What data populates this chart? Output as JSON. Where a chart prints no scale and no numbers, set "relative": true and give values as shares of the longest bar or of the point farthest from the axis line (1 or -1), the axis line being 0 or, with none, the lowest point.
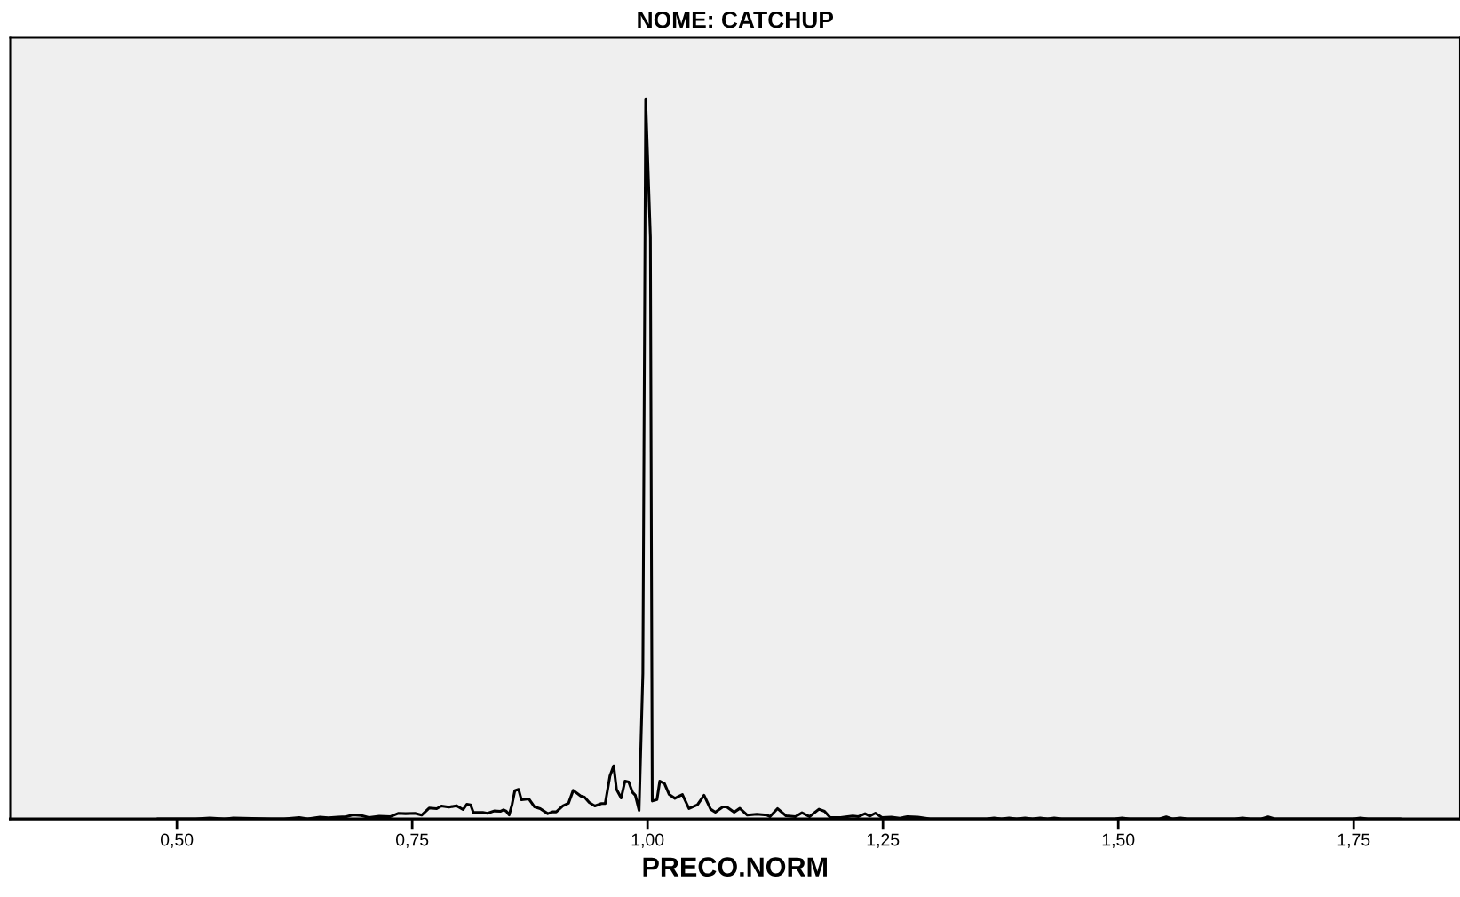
{
  "chart_data": {
    "type": "line",
    "title": "NOME: CATCHUP",
    "xlabel": "PRECO.NORM",
    "relative": true,
    "xlim": [
      0.323,
      1.863
    ],
    "xticks": [
      {
        "value": 0.5,
        "label": "0,50"
      },
      {
        "value": 0.75,
        "label": "0,75"
      },
      {
        "value": 1.0,
        "label": "1,00"
      },
      {
        "value": 1.25,
        "label": "1,25"
      },
      {
        "value": 1.5,
        "label": "1,50"
      },
      {
        "value": 1.75,
        "label": "1,75"
      }
    ],
    "grid": false,
    "marker": "none",
    "line_style": "solid",
    "series": [
      {
        "color": "#000000",
        "x": [
          0.48,
          0.52,
          0.535,
          0.55,
          0.56,
          0.6,
          0.614,
          0.63,
          0.639,
          0.652,
          0.661,
          0.671,
          0.68,
          0.687,
          0.696,
          0.704,
          0.715,
          0.727,
          0.735,
          0.743,
          0.753,
          0.76,
          0.768,
          0.776,
          0.781,
          0.789,
          0.797,
          0.804,
          0.808,
          0.812,
          0.815,
          0.825,
          0.83,
          0.837,
          0.844,
          0.847,
          0.85,
          0.853,
          0.856,
          0.859,
          0.863,
          0.866,
          0.874,
          0.88,
          0.886,
          0.894,
          0.899,
          0.903,
          0.91,
          0.916,
          0.921,
          0.929,
          0.933,
          0.938,
          0.944,
          0.951,
          0.955,
          0.96,
          0.964,
          0.967,
          0.972,
          0.976,
          0.98,
          0.984,
          0.987,
          0.991,
          0.995,
          0.998,
          1.003,
          1.005,
          1.01,
          1.013,
          1.018,
          1.023,
          1.029,
          1.037,
          1.044,
          1.053,
          1.06,
          1.067,
          1.072,
          1.08,
          1.084,
          1.092,
          1.098,
          1.106,
          1.116,
          1.127,
          1.13,
          1.138,
          1.147,
          1.157,
          1.164,
          1.172,
          1.182,
          1.188,
          1.194,
          1.205,
          1.218,
          1.224,
          1.231,
          1.236,
          1.242,
          1.249,
          1.259,
          1.268,
          1.276,
          1.287,
          1.3,
          1.36,
          1.368,
          1.376,
          1.384,
          1.392,
          1.401,
          1.409,
          1.417,
          1.425,
          1.432,
          1.44,
          1.496,
          1.504,
          1.512,
          1.543,
          1.551,
          1.558,
          1.566,
          1.574,
          1.624,
          1.632,
          1.64,
          1.651,
          1.659,
          1.667,
          1.749,
          1.757,
          1.765,
          1.8
        ],
        "values": [
          0,
          0,
          0.0015,
          0,
          0.0015,
          0,
          0,
          0.002,
          0,
          0.0025,
          0.0016,
          0.0025,
          0.0033,
          0.0057,
          0.0049,
          0.002,
          0.0037,
          0.0033,
          0.0078,
          0.0074,
          0.0078,
          0.0053,
          0.0152,
          0.0144,
          0.0181,
          0.0164,
          0.0185,
          0.0131,
          0.0205,
          0.0197,
          0.009,
          0.009,
          0.0078,
          0.0111,
          0.0107,
          0.0127,
          0.0107,
          0.0057,
          0.0197,
          0.0394,
          0.0411,
          0.0267,
          0.0279,
          0.0168,
          0.0144,
          0.0074,
          0.0099,
          0.0099,
          0.0181,
          0.0218,
          0.0398,
          0.032,
          0.0304,
          0.023,
          0.0181,
          0.0214,
          0.0214,
          0.0595,
          0.0739,
          0.0411,
          0.0292,
          0.0526,
          0.0513,
          0.037,
          0.033,
          0.012,
          0.202,
          1.0,
          0.808,
          0.025,
          0.027,
          0.0526,
          0.049,
          0.034,
          0.0287,
          0.034,
          0.0144,
          0.0197,
          0.0329,
          0.0136,
          0.0094,
          0.0168,
          0.0168,
          0.0094,
          0.0148,
          0.0053,
          0.0066,
          0.0053,
          0.0033,
          0.0144,
          0.0045,
          0.0033,
          0.0086,
          0.0033,
          0.0136,
          0.0107,
          0.002,
          0.002,
          0.0041,
          0.0033,
          0.0074,
          0.0041,
          0.0082,
          0.002,
          0.0025,
          0.0012,
          0.0033,
          0.0025,
          0,
          0,
          0.0015,
          0,
          0.0015,
          0,
          0.0015,
          0,
          0.0015,
          0,
          0.0015,
          0,
          0,
          0.0015,
          0,
          0,
          0.003,
          0,
          0.0015,
          0,
          0,
          0.0015,
          0,
          0,
          0.003,
          0,
          0,
          0.0015,
          0,
          0
        ]
      }
    ]
  }
}
